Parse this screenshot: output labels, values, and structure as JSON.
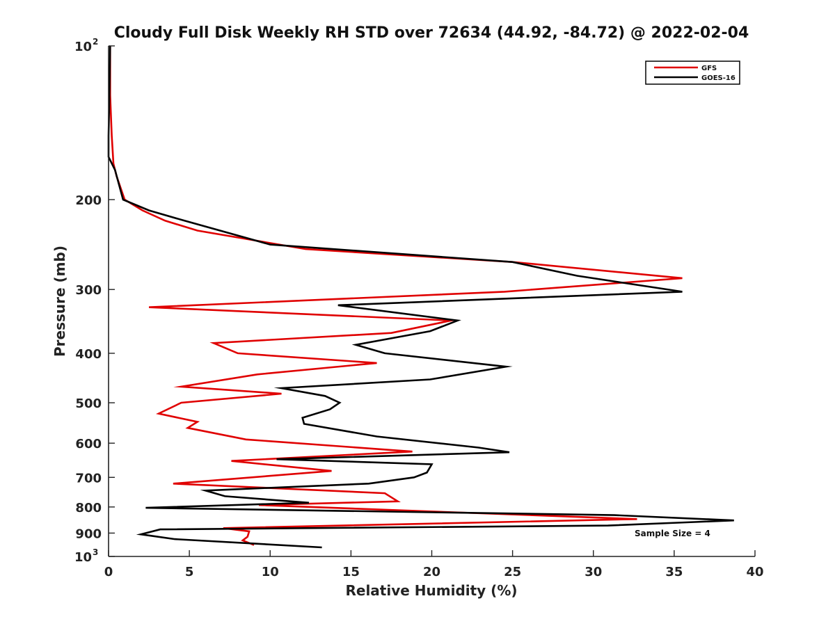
{
  "chart_data": {
    "type": "line",
    "title": "Cloudy Full Disk Weekly RH STD over 72634 (44.92, -84.72) @ 2022-02-04",
    "xlabel": "Relative Humidity (%)",
    "ylabel": "Pressure (mb)",
    "xlim": [
      0,
      40
    ],
    "ylim": [
      100,
      1000
    ],
    "y_scale": "log",
    "y_reversed": true,
    "grid": false,
    "legend_position": "top-right",
    "x_ticks": [
      "0",
      "5",
      "10",
      "15",
      "20",
      "25",
      "30",
      "35",
      "40"
    ],
    "y_ticks": [
      {
        "value": 100,
        "base": "10",
        "exp": "2"
      },
      {
        "value": 200,
        "label": "200"
      },
      {
        "value": 300,
        "label": "300"
      },
      {
        "value": 400,
        "label": "400"
      },
      {
        "value": 500,
        "label": "500"
      },
      {
        "value": 600,
        "label": "600"
      },
      {
        "value": 700,
        "label": "700"
      },
      {
        "value": 800,
        "label": "800"
      },
      {
        "value": 900,
        "label": "900"
      },
      {
        "value": 1000,
        "base": "10",
        "exp": "3"
      }
    ],
    "annotation": "Sample Size = 4",
    "series": [
      {
        "name": "GFS",
        "color": "#e00000",
        "points": [
          [
            0.1,
            100
          ],
          [
            0.1,
            125
          ],
          [
            0.2,
            150
          ],
          [
            0.3,
            170
          ],
          [
            0.5,
            180
          ],
          [
            1.0,
            200
          ],
          [
            2.1,
            210
          ],
          [
            3.5,
            220
          ],
          [
            5.5,
            230
          ],
          [
            12.2,
            250
          ],
          [
            25.0,
            265
          ],
          [
            35.5,
            285
          ],
          [
            24.5,
            303
          ],
          [
            2.5,
            325
          ],
          [
            21.2,
            345
          ],
          [
            17.5,
            365
          ],
          [
            6.5,
            382
          ],
          [
            8.0,
            400
          ],
          [
            16.6,
            418
          ],
          [
            9.2,
            440
          ],
          [
            4.5,
            465
          ],
          [
            10.7,
            480
          ],
          [
            4.5,
            500
          ],
          [
            3.1,
            525
          ],
          [
            5.5,
            545
          ],
          [
            4.9,
            560
          ],
          [
            8.5,
            590
          ],
          [
            18.8,
            623
          ],
          [
            7.6,
            650
          ],
          [
            13.8,
            680
          ],
          [
            4.0,
            720
          ],
          [
            17.1,
            752
          ],
          [
            17.9,
            780
          ],
          [
            9.3,
            793
          ],
          [
            32.7,
            845
          ],
          [
            7.1,
            880
          ],
          [
            8.7,
            893
          ],
          [
            8.6,
            915
          ],
          [
            8.3,
            930
          ],
          [
            9.0,
            950
          ]
        ]
      },
      {
        "name": "GOES-16",
        "color": "#000000",
        "points": [
          [
            0.1,
            100
          ],
          [
            0.05,
            125
          ],
          [
            0.0,
            150
          ],
          [
            0.0,
            165
          ],
          [
            0.4,
            175
          ],
          [
            0.9,
            200
          ],
          [
            2.5,
            210
          ],
          [
            4.7,
            220
          ],
          [
            10.0,
            245
          ],
          [
            25.0,
            265
          ],
          [
            29.0,
            282
          ],
          [
            35.5,
            303
          ],
          [
            14.2,
            322
          ],
          [
            21.6,
            345
          ],
          [
            19.9,
            362
          ],
          [
            15.3,
            385
          ],
          [
            17.1,
            400
          ],
          [
            24.6,
            425
          ],
          [
            19.9,
            450
          ],
          [
            10.7,
            468
          ],
          [
            13.4,
            485
          ],
          [
            14.3,
            500
          ],
          [
            13.7,
            515
          ],
          [
            12.0,
            535
          ],
          [
            12.1,
            550
          ],
          [
            16.6,
            582
          ],
          [
            22.9,
            612
          ],
          [
            24.8,
            625
          ],
          [
            10.4,
            645
          ],
          [
            20.0,
            660
          ],
          [
            19.7,
            685
          ],
          [
            18.9,
            700
          ],
          [
            16.1,
            720
          ],
          [
            6.0,
            743
          ],
          [
            7.2,
            762
          ],
          [
            12.4,
            785
          ],
          [
            2.3,
            803
          ],
          [
            31.3,
            830
          ],
          [
            38.7,
            850
          ],
          [
            30.9,
            870
          ],
          [
            3.2,
            885
          ],
          [
            2.0,
            905
          ],
          [
            4.1,
            925
          ],
          [
            13.2,
            960
          ]
        ]
      }
    ]
  }
}
